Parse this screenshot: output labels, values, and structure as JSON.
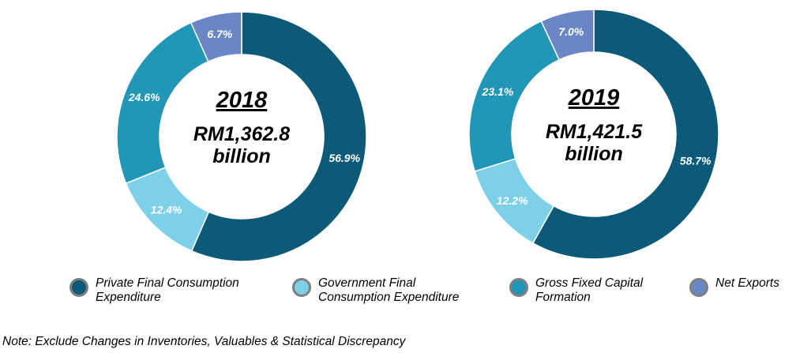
{
  "chart_data": [
    {
      "type": "pie",
      "variant": "donut",
      "year": "2018",
      "total_line1": "RM1,362.8",
      "total_line2": "billion",
      "categories": [
        "Private Final Consumption Expenditure",
        "Government Final Consumption Expenditure",
        "Gross Fixed Capital Formation",
        "Net Exports"
      ],
      "values": [
        56.9,
        12.4,
        24.6,
        6.7
      ],
      "labels": [
        "56.9%",
        "12.4%",
        "24.6%",
        "6.7%"
      ]
    },
    {
      "type": "pie",
      "variant": "donut",
      "year": "2019",
      "total_line1": "RM1,421.5",
      "total_line2": "billion",
      "categories": [
        "Private Final Consumption Expenditure",
        "Government Final Consumption Expenditure",
        "Gross Fixed Capital Formation",
        "Net Exports"
      ],
      "values": [
        58.7,
        12.2,
        23.1,
        7.0
      ],
      "labels": [
        "58.7%",
        "12.2%",
        "23.1%",
        "7.0%"
      ]
    }
  ],
  "colors": [
    "#0c5a78",
    "#7dd0e8",
    "#2196b6",
    "#6a86c4"
  ],
  "legend": [
    {
      "line1": "Private Final Consumption",
      "line2": "Expenditure"
    },
    {
      "line1": "Government Final",
      "line2": "Consumption Expenditure"
    },
    {
      "line1": "Gross Fixed Capital",
      "line2": "Formation"
    },
    {
      "line1": "Net Exports",
      "line2": ""
    }
  ],
  "note": "Note: Exclude Changes in Inventories, Valuables & Statistical Discrepancy"
}
